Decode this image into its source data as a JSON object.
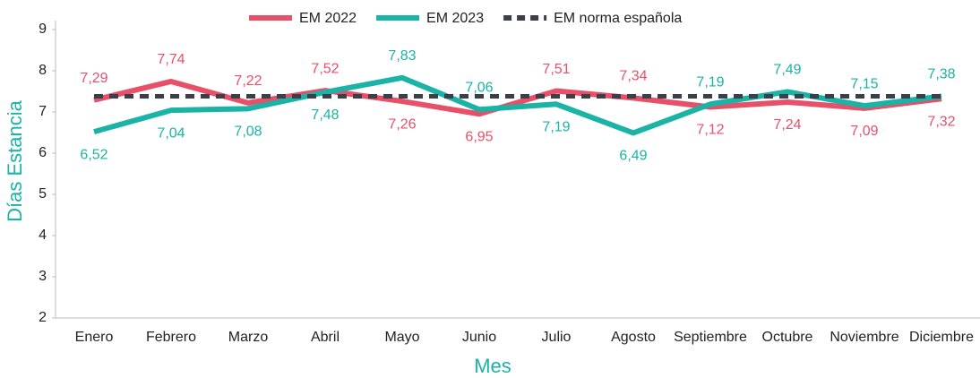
{
  "chart_data": {
    "type": "line",
    "xlabel": "Mes",
    "ylabel": "Días Estancia",
    "categories": [
      "Enero",
      "Febrero",
      "Marzo",
      "Abril",
      "Mayo",
      "Junio",
      "Julio",
      "Agosto",
      "Septiembre",
      "Octubre",
      "Noviembre",
      "Diciembre"
    ],
    "series": [
      {
        "name": "EM 2022",
        "color": "#e8506a",
        "dashed": false,
        "values": [
          7.29,
          7.74,
          7.22,
          7.52,
          7.26,
          6.95,
          7.51,
          7.34,
          7.12,
          7.24,
          7.09,
          7.32
        ],
        "value_labels": [
          "7,29",
          "7,74",
          "7,22",
          "7,52",
          "7,26",
          "6,95",
          "7,51",
          "7,34",
          "7,12",
          "7,24",
          "7,09",
          "7,32"
        ]
      },
      {
        "name": "EM 2023",
        "color": "#1ab3a6",
        "dashed": false,
        "values": [
          6.52,
          7.04,
          7.08,
          7.48,
          7.83,
          7.06,
          7.19,
          6.49,
          7.19,
          7.49,
          7.15,
          7.38
        ],
        "value_labels": [
          "6,52",
          "7,04",
          "7,08",
          "7,48",
          "7,83",
          "7,06",
          "7,19",
          "6,49",
          "7,19",
          "7,49",
          "7,15",
          "7,38"
        ]
      },
      {
        "name": "EM norma española",
        "color": "#3a3f4a",
        "dashed": true,
        "values": [
          7.38,
          7.38,
          7.38,
          7.38,
          7.38,
          7.38,
          7.38,
          7.38,
          7.38,
          7.38,
          7.38,
          7.38
        ]
      }
    ],
    "ylim": [
      2,
      9
    ],
    "yticks": [
      2,
      3,
      4,
      5,
      6,
      7,
      8,
      9
    ],
    "legend": "top"
  }
}
